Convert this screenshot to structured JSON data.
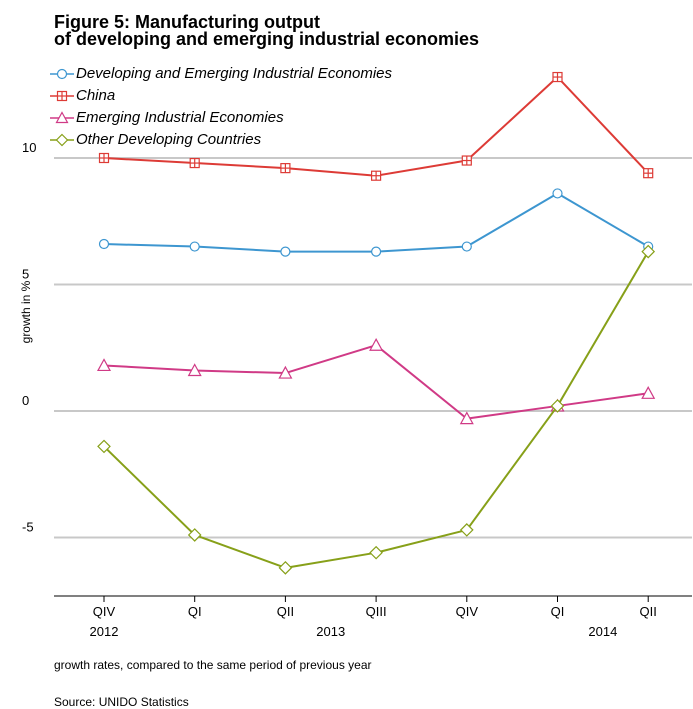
{
  "title_line1": "Figure 5: Manufacturing output",
  "title_line2": "of developing and emerging industrial economies",
  "note": "growth rates, compared to the same period of previous year",
  "source": "Source: UNIDO Statistics",
  "chart_data": {
    "type": "line",
    "ylabel": "growth in %",
    "ylim": [
      -7.5,
      10.5
    ],
    "yticks": [
      -5,
      0,
      5,
      10
    ],
    "grid": "horizontal",
    "legend_position": "top-left",
    "x": [
      "QIV 2012",
      "QI 2013",
      "QII 2013",
      "QIII 2013",
      "QIV 2013",
      "QI 2014",
      "QII 2014"
    ],
    "quarter_labels": [
      "QIV",
      "QI",
      "QII",
      "QIII",
      "QIV",
      "QI",
      "QII"
    ],
    "year_labels": [
      {
        "label": "2012",
        "index": 0
      },
      {
        "label": "2013",
        "index": 2.5
      },
      {
        "label": "2014",
        "index": 5.5
      }
    ],
    "series": [
      {
        "name": "Developing and Emerging Industrial Economies",
        "color": "#3d96d0",
        "marker": "circle",
        "values": [
          6.6,
          6.5,
          6.3,
          6.3,
          6.5,
          8.6,
          6.5
        ]
      },
      {
        "name": "China",
        "color": "#dd3b36",
        "marker": "boxplus",
        "values": [
          10.0,
          9.8,
          9.6,
          9.3,
          9.9,
          13.2,
          9.4
        ]
      },
      {
        "name": "Emerging Industrial Economies",
        "color": "#d03a86",
        "marker": "triangle",
        "values": [
          1.8,
          1.6,
          1.5,
          2.6,
          -0.3,
          0.2,
          0.7
        ]
      },
      {
        "name": "Other Developing Countries",
        "color": "#87a019",
        "marker": "diamond",
        "values": [
          -1.4,
          -4.9,
          -6.2,
          -5.6,
          -4.7,
          0.2,
          6.3
        ]
      }
    ]
  }
}
